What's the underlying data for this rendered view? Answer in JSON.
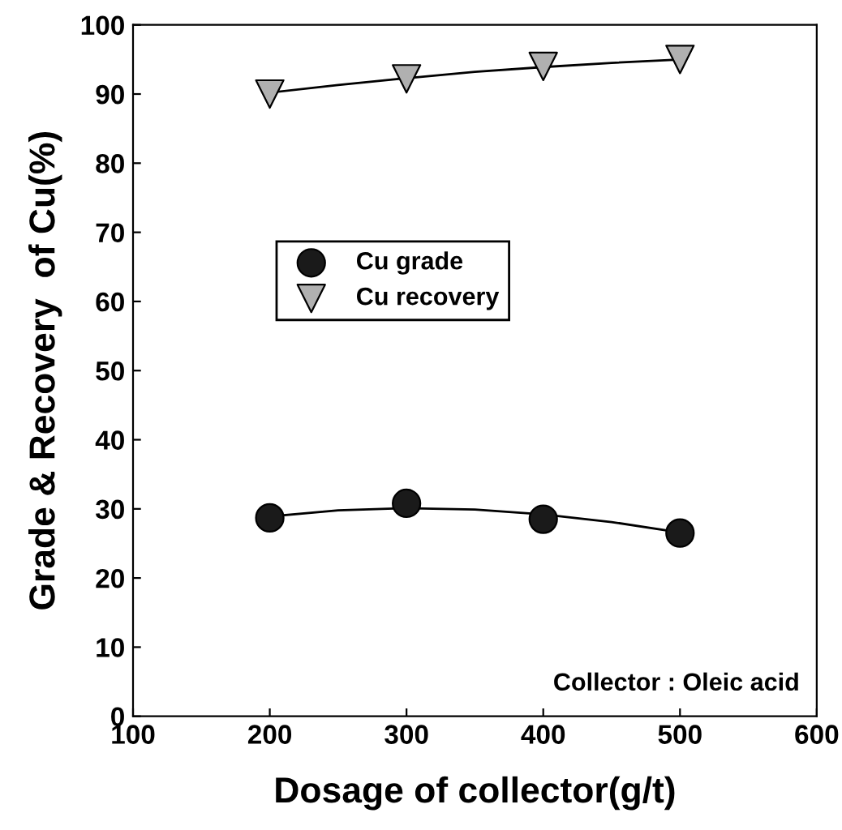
{
  "chart_data": {
    "type": "scatter",
    "xlabel": "Dosage of collector(g/t)",
    "ylabel": "Grade & Recovery  of Cu(%)",
    "xlim": [
      100,
      600
    ],
    "xticks": [
      100,
      200,
      300,
      400,
      500,
      600
    ],
    "ylim": [
      0,
      100
    ],
    "yticks": [
      0,
      10,
      20,
      30,
      40,
      50,
      60,
      70,
      80,
      90,
      100
    ],
    "grid": false,
    "legend": "center",
    "annotations": [
      "Collector : Oleic acid"
    ],
    "series": [
      {
        "name": "Cu grade",
        "color": "#1a1a1a",
        "marker": "circle",
        "x": [
          200,
          300,
          400,
          500
        ],
        "values": [
          28.7,
          30.8,
          28.5,
          26.5
        ]
      },
      {
        "name": "Cu recovery",
        "color": "#b0b0b0",
        "marker": "triangle",
        "x": [
          200,
          300,
          400,
          500
        ],
        "values": [
          90.0,
          92.2,
          94.0,
          95.0
        ]
      },
      {
        "type": "line",
        "color": "#000000",
        "marker": "none",
        "x": [
          200,
          250,
          300,
          350,
          400,
          450,
          500
        ],
        "values": [
          28.9,
          29.8,
          30.1,
          29.9,
          29.2,
          28.1,
          26.6
        ]
      },
      {
        "type": "line",
        "color": "#000000",
        "marker": "none",
        "x": [
          200,
          250,
          300,
          350,
          400,
          450,
          500
        ],
        "values": [
          90.2,
          91.3,
          92.3,
          93.2,
          93.9,
          94.5,
          95.0
        ]
      }
    ]
  }
}
